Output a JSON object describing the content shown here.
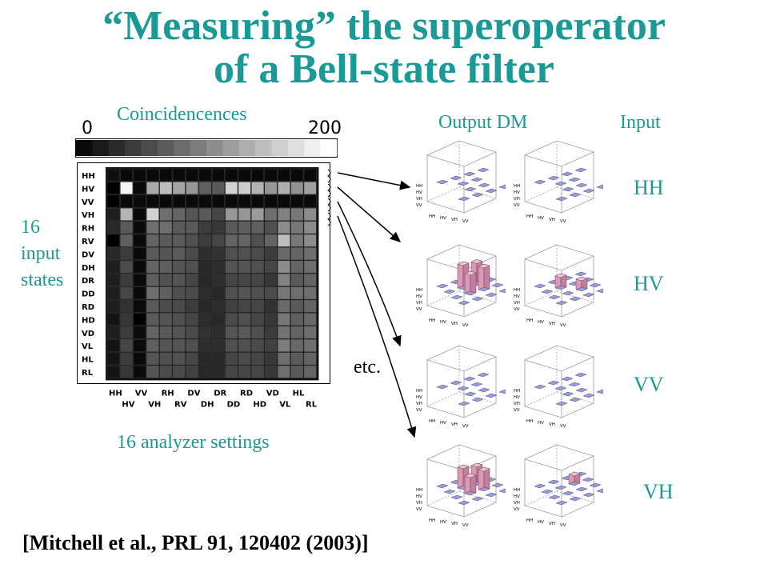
{
  "title": {
    "line1": "“Measuring” the superoperator",
    "line2": "of a Bell-state filter"
  },
  "colorbar": {
    "label": "Coincidencences",
    "min_label": "0",
    "max_label": "200",
    "steps": 16
  },
  "matrix": {
    "row_labels": [
      "HH",
      "HV",
      "VV",
      "VH",
      "RH",
      "RV",
      "DV",
      "DH",
      "DR",
      "DD",
      "RD",
      "HD",
      "VD",
      "VL",
      "HL",
      "RL"
    ],
    "col_labels_top": [
      "HH",
      "VV",
      "RH",
      "DV",
      "DR",
      "RD",
      "VD",
      "HL"
    ],
    "col_labels_bottom": [
      "HV",
      "VH",
      "RV",
      "DH",
      "DD",
      "HD",
      "VL",
      "RL"
    ],
    "y_axis_label": "16\ninput\nstates",
    "x_axis_label": "16 analyzer settings",
    "values": [
      [
        15,
        10,
        10,
        10,
        10,
        10,
        10,
        10,
        10,
        10,
        10,
        10,
        10,
        10,
        10,
        10
      ],
      [
        0,
        245,
        10,
        170,
        190,
        165,
        150,
        95,
        90,
        210,
        205,
        180,
        150,
        175,
        145,
        160
      ],
      [
        0,
        10,
        10,
        10,
        10,
        10,
        10,
        10,
        10,
        10,
        10,
        10,
        10,
        10,
        10,
        10
      ],
      [
        30,
        180,
        10,
        210,
        110,
        100,
        85,
        90,
        70,
        150,
        150,
        155,
        110,
        130,
        120,
        140
      ],
      [
        40,
        90,
        10,
        110,
        110,
        90,
        90,
        60,
        55,
        90,
        95,
        95,
        80,
        140,
        120,
        140
      ],
      [
        0,
        95,
        10,
        100,
        90,
        90,
        80,
        60,
        70,
        100,
        100,
        80,
        100,
        190,
        120,
        140
      ],
      [
        40,
        60,
        10,
        90,
        85,
        90,
        75,
        45,
        50,
        80,
        80,
        75,
        60,
        105,
        100,
        110
      ],
      [
        30,
        75,
        10,
        100,
        95,
        85,
        80,
        40,
        45,
        85,
        85,
        80,
        70,
        140,
        100,
        110
      ],
      [
        30,
        60,
        10,
        95,
        80,
        85,
        70,
        40,
        45,
        70,
        70,
        70,
        55,
        130,
        90,
        100
      ],
      [
        30,
        70,
        10,
        110,
        95,
        80,
        75,
        45,
        40,
        80,
        85,
        80,
        75,
        120,
        110,
        110
      ],
      [
        30,
        50,
        10,
        90,
        75,
        75,
        60,
        40,
        45,
        65,
        70,
        70,
        50,
        105,
        90,
        100
      ],
      [
        20,
        55,
        0,
        90,
        85,
        80,
        70,
        45,
        40,
        75,
        80,
        70,
        55,
        120,
        95,
        105
      ],
      [
        30,
        60,
        10,
        100,
        90,
        85,
        75,
        50,
        45,
        85,
        90,
        80,
        60,
        115,
        100,
        110
      ],
      [
        20,
        70,
        10,
        95,
        85,
        85,
        80,
        45,
        45,
        80,
        80,
        75,
        65,
        125,
        105,
        110
      ],
      [
        20,
        60,
        10,
        85,
        80,
        80,
        70,
        40,
        40,
        70,
        75,
        70,
        55,
        110,
        90,
        100
      ],
      [
        20,
        55,
        10,
        85,
        75,
        75,
        65,
        40,
        40,
        70,
        70,
        70,
        55,
        110,
        90,
        100
      ]
    ]
  },
  "columns": {
    "output": "Output DM",
    "input": "Input"
  },
  "rows": [
    "HH",
    "HV",
    "VV",
    "VH"
  ],
  "etc": "etc.",
  "dm_axis_labels": {
    "left": [
      "HH",
      "HV",
      "VH",
      "VV"
    ],
    "front": [
      "HH",
      "HV",
      "VH",
      "VV"
    ]
  },
  "reference": "[Mitchell et al., PRL 91, 120402 (2003)]",
  "colors": {
    "title": "#1a9a96",
    "bar_flat": "#9a9ad6",
    "bar_tall": "#d89ab4",
    "arrow": "#000000"
  }
}
